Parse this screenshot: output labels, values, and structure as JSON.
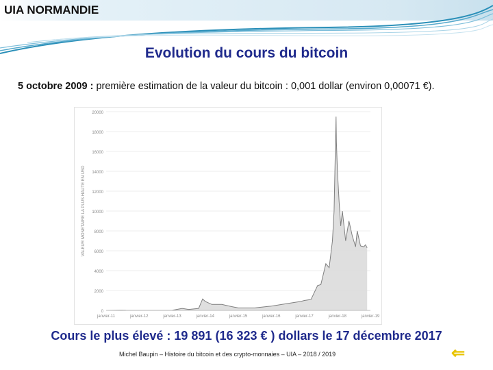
{
  "header": {
    "org_name": "UIA NORMANDIE"
  },
  "slide": {
    "title": "Evolution du cours du bitcoin",
    "subtitle_bold": "5 octobre 2009 :",
    "subtitle_rest": " première estimation de la valeur du bitcoin : 0,001 dollar (environ 0,00071 €).",
    "highlight": "Cours le plus élevé : 19 891 (16 323 € ) dollars le 17 décembre 2017",
    "footer": "Michel Baupin – Histoire du bitcoin et des crypto-monnaies – UIA – 2018 / 2019",
    "back_icon": "return-arrow-icon"
  },
  "colors": {
    "title": "#1f2a8c",
    "area_fill": "#d9d9d9",
    "area_line": "#7f7f7f",
    "back_icon": "#e8c400"
  },
  "chart_data": {
    "type": "area",
    "ylabel": "VALEUR MONETAIRE LA PLUS HAUTE EN USD",
    "ylim": [
      0,
      20000
    ],
    "yticks": [
      "0",
      "2000",
      "4000",
      "6000",
      "8000",
      "10000",
      "12000",
      "14000",
      "16000",
      "18000",
      "20000"
    ],
    "xticks": [
      "janvier-11",
      "janvier-12",
      "janvier-13",
      "janvier-14",
      "janvier-15",
      "janvier-16",
      "janvier-17",
      "janvier-18",
      "janvier-19"
    ],
    "xrange": [
      2011.0,
      2019.0
    ],
    "grid": true,
    "points": [
      [
        2011.0,
        0.3
      ],
      [
        2011.45,
        30
      ],
      [
        2011.6,
        15
      ],
      [
        2012.0,
        5
      ],
      [
        2012.5,
        7
      ],
      [
        2013.0,
        15
      ],
      [
        2013.3,
        200
      ],
      [
        2013.5,
        100
      ],
      [
        2013.8,
        200
      ],
      [
        2013.92,
        1150
      ],
      [
        2014.0,
        900
      ],
      [
        2014.2,
        600
      ],
      [
        2014.5,
        600
      ],
      [
        2014.8,
        380
      ],
      [
        2015.0,
        250
      ],
      [
        2015.5,
        250
      ],
      [
        2015.9,
        400
      ],
      [
        2016.0,
        430
      ],
      [
        2016.5,
        700
      ],
      [
        2016.9,
        900
      ],
      [
        2017.0,
        1000
      ],
      [
        2017.2,
        1100
      ],
      [
        2017.4,
        2500
      ],
      [
        2017.5,
        2600
      ],
      [
        2017.65,
        4700
      ],
      [
        2017.75,
        4300
      ],
      [
        2017.85,
        7000
      ],
      [
        2017.9,
        10000
      ],
      [
        2017.93,
        15000
      ],
      [
        2017.96,
        19500
      ],
      [
        2017.97,
        17000
      ],
      [
        2018.0,
        14000
      ],
      [
        2018.05,
        11000
      ],
      [
        2018.1,
        8500
      ],
      [
        2018.15,
        10000
      ],
      [
        2018.25,
        7000
      ],
      [
        2018.35,
        9000
      ],
      [
        2018.45,
        7500
      ],
      [
        2018.55,
        6400
      ],
      [
        2018.6,
        8000
      ],
      [
        2018.7,
        6500
      ],
      [
        2018.8,
        6400
      ],
      [
        2018.85,
        6600
      ],
      [
        2018.9,
        6300
      ]
    ]
  }
}
